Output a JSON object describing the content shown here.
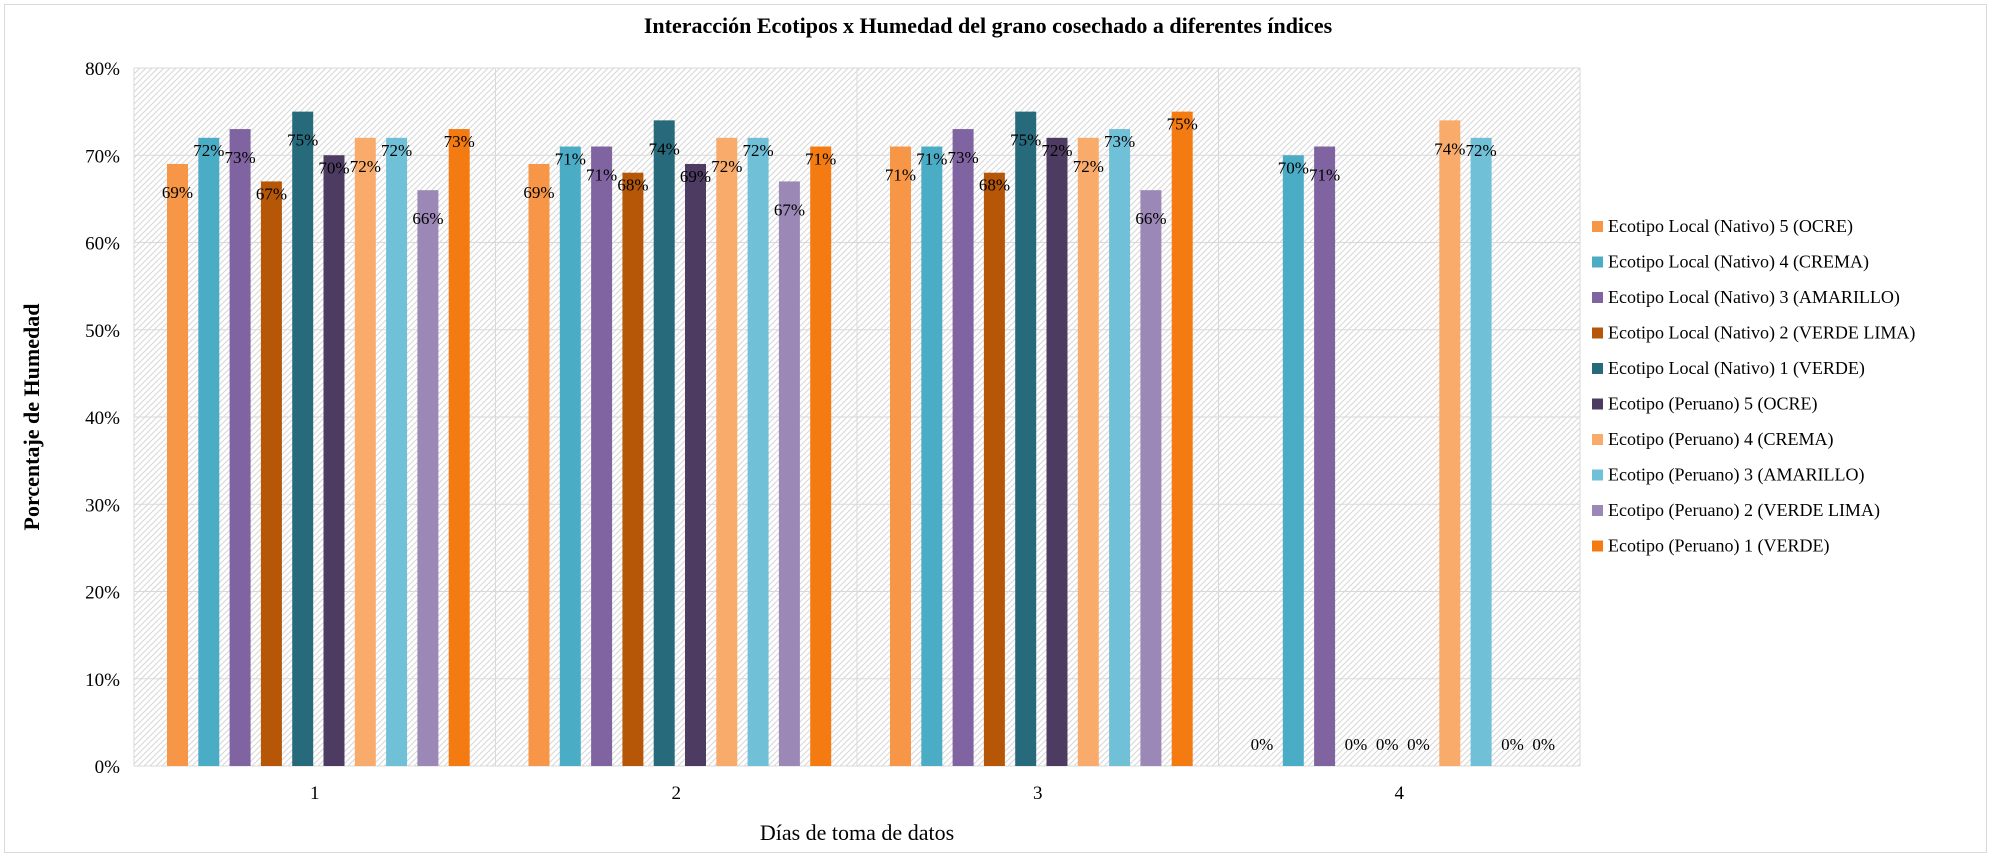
{
  "chart_data": {
    "type": "bar",
    "title": "Interacción Ecotipos x Humedad del grano cosechado a diferentes índices",
    "xlabel": "Días  de toma de datos",
    "ylabel": "Porcentaje de Humedad",
    "categories": [
      "1",
      "2",
      "3",
      "4"
    ],
    "ylim": [
      0,
      80
    ],
    "yticks": [
      "0%",
      "10%",
      "20%",
      "30%",
      "40%",
      "50%",
      "60%",
      "70%",
      "80%"
    ],
    "grid": true,
    "legend_position": "right",
    "series": [
      {
        "name": "Ecotipo Local (Nativo)  5 (OCRE)",
        "color": "#F79646",
        "values": [
          69,
          69,
          71,
          0
        ],
        "labels": [
          "69%",
          "69%",
          "71%",
          "0%"
        ]
      },
      {
        "name": "Ecotipo Local (Nativo)  4 (CREMA)",
        "color": "#4BACC6",
        "values": [
          72,
          71,
          71,
          70
        ],
        "labels": [
          "72%",
          "71%",
          "71%",
          "70%"
        ]
      },
      {
        "name": "Ecotipo Local (Nativo)  3 (AMARILLO)",
        "color": "#8064A2",
        "values": [
          73,
          71,
          73,
          71
        ],
        "labels": [
          "73%",
          "71%",
          "73%",
          "71%"
        ]
      },
      {
        "name": "Ecotipo Local (Nativo)  2 (VERDE LIMA)",
        "color": "#B65708",
        "values": [
          67,
          68,
          68,
          0
        ],
        "labels": [
          "67%",
          "68%",
          "68%",
          "0%"
        ]
      },
      {
        "name": "Ecotipo Local (Nativo)  1  (VERDE)",
        "color": "#276A7C",
        "values": [
          75,
          74,
          75,
          0
        ],
        "labels": [
          "75%",
          "74%",
          "75%",
          "0%"
        ]
      },
      {
        "name": "Ecotipo (Peruano) 5 (OCRE)",
        "color": "#4D3B62",
        "values": [
          70,
          69,
          72,
          0
        ],
        "labels": [
          "70%",
          "69%",
          "72%",
          "0%"
        ]
      },
      {
        "name": "Ecotipo (Peruano) 4 (CREMA)",
        "color": "#F9AB6B",
        "values": [
          72,
          72,
          72,
          74
        ],
        "labels": [
          "72%",
          "72%",
          "72%",
          "74%"
        ]
      },
      {
        "name": "Ecotipo (Peruano) 3 (AMARILLO)",
        "color": "#70C0D8",
        "values": [
          72,
          72,
          73,
          72
        ],
        "labels": [
          "72%",
          "72%",
          "73%",
          "72%"
        ]
      },
      {
        "name": "Ecotipo (Peruano) 2 (VERDE LIMA)",
        "color": "#9C88B6",
        "values": [
          66,
          67,
          66,
          0
        ],
        "labels": [
          "66%",
          "67%",
          "66%",
          "0%"
        ]
      },
      {
        "name": "Ecotipo (Peruano) 1  (VERDE)",
        "color": "#F47B12",
        "values": [
          73,
          71,
          75,
          0
        ],
        "labels": [
          "73%",
          "71%",
          "75%",
          "0%"
        ]
      }
    ]
  }
}
